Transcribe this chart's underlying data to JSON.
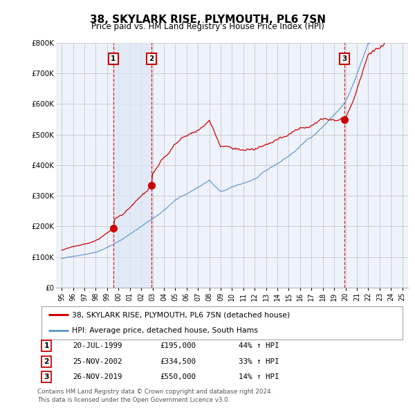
{
  "title": "38, SKYLARK RISE, PLYMOUTH, PL6 7SN",
  "subtitle": "Price paid vs. HM Land Registry's House Price Index (HPI)",
  "title_fontsize": 11,
  "subtitle_fontsize": 9,
  "ylim": [
    0,
    800000
  ],
  "yticks": [
    0,
    100000,
    200000,
    300000,
    400000,
    500000,
    600000,
    700000,
    800000
  ],
  "ytick_labels": [
    "£0",
    "£100K",
    "£200K",
    "£300K",
    "£400K",
    "£500K",
    "£600K",
    "£700K",
    "£800K"
  ],
  "xlim_start": 1994.5,
  "xlim_end": 2025.5,
  "sale_years": [
    1999.55,
    2002.9,
    2019.9
  ],
  "sale_prices": [
    195000,
    334500,
    550000
  ],
  "sale_labels": [
    "1",
    "2",
    "3"
  ],
  "sale_date_strs": [
    "20-JUL-1999",
    "25-NOV-2002",
    "26-NOV-2019"
  ],
  "sale_price_strs": [
    "£195,000",
    "£334,500",
    "£550,000"
  ],
  "sale_pct_strs": [
    "44% ↑ HPI",
    "33% ↑ HPI",
    "14% ↑ HPI"
  ],
  "red_color": "#cc0000",
  "blue_color": "#6699cc",
  "shade_color": "#dce8f5",
  "grid_color": "#c8c8c8",
  "bg_color": "#eef2fa",
  "legend_label1": "38, SKYLARK RISE, PLYMOUTH, PL6 7SN (detached house)",
  "legend_label2": "HPI: Average price, detached house, South Hams",
  "footer1": "Contains HM Land Registry data © Crown copyright and database right 2024.",
  "footer2": "This data is licensed under the Open Government Licence v3.0."
}
